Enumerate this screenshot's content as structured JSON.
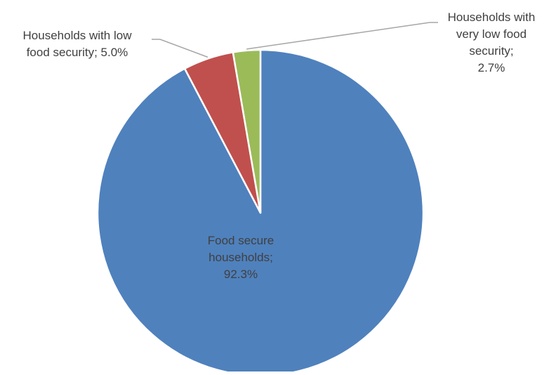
{
  "chart_data": {
    "type": "pie",
    "title": "",
    "start_angle_deg": 0,
    "direction": "counterclockwise",
    "slices": [
      {
        "label": "Food secure households",
        "value": 92.3,
        "value_label": "92.3%",
        "color": "#4f81bd",
        "label_lines": [
          "Food secure",
          "households;",
          "92.3%"
        ]
      },
      {
        "label": "Households with low food security",
        "value": 5.0,
        "value_label": "5.0%",
        "color": "#c0504d",
        "label_lines": [
          "Households with low",
          "food security; 5.0%"
        ]
      },
      {
        "label": "Households with very low food security",
        "value": 2.7,
        "value_label": "2.7%",
        "color": "#9bbb59",
        "label_lines": [
          "Households with",
          "very low food",
          "security;",
          "2.7%"
        ]
      }
    ],
    "legend": "none",
    "label_style": "category-and-value"
  }
}
